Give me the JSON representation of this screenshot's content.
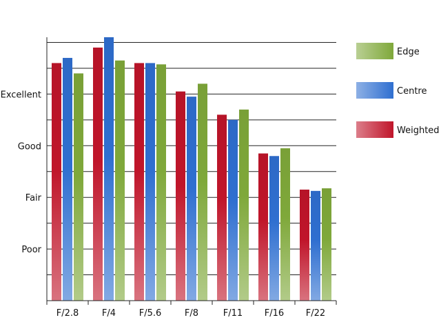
{
  "chart_data": {
    "type": "bar",
    "categories": [
      "F/2.8",
      "F/4",
      "F/5.6",
      "F/8",
      "F/11",
      "F/16",
      "F/22"
    ],
    "series": [
      {
        "name": "Weighted",
        "values": [
          9.2,
          9.8,
          9.2,
          8.1,
          7.2,
          5.7,
          4.3
        ]
      },
      {
        "name": "Centre",
        "values": [
          9.4,
          10.2,
          9.2,
          7.9,
          7.0,
          5.6,
          4.25
        ]
      },
      {
        "name": "Edge",
        "values": [
          8.8,
          9.3,
          9.15,
          8.4,
          7.4,
          5.9,
          4.35
        ]
      }
    ],
    "y_tick_labels": [
      {
        "value": 2,
        "label": "Poor"
      },
      {
        "value": 4,
        "label": "Fair"
      },
      {
        "value": 6,
        "label": "Good"
      },
      {
        "value": 8,
        "label": "Excellent"
      }
    ],
    "ylim": [
      0,
      10.2
    ],
    "ygrid_step": 1,
    "grid": true,
    "legend_position": "right",
    "legend_order": [
      "Edge",
      "Centre",
      "Weighted"
    ],
    "colors": {
      "Weighted": "#c0152a",
      "Centre": "#2f6fd0",
      "Edge": "#7fa83a"
    },
    "title": "",
    "xlabel": "",
    "ylabel": ""
  }
}
